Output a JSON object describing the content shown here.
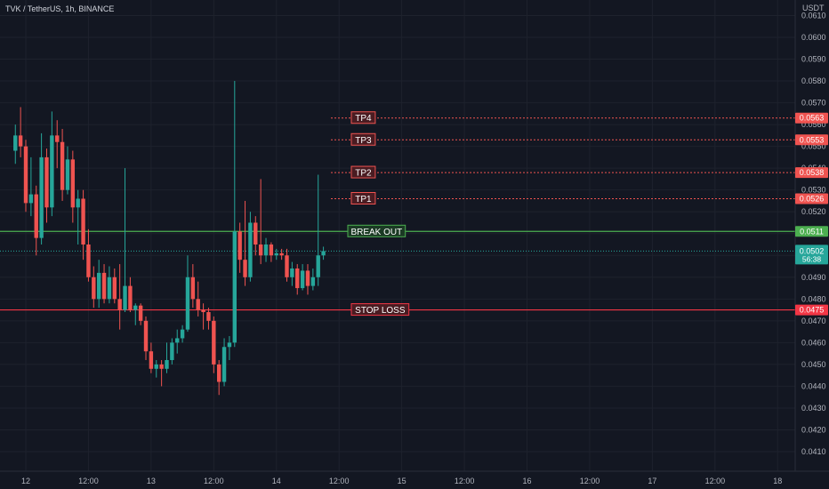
{
  "header": {
    "symbol_title": "TVK / TetherUS, 1h, BINANCE",
    "currency": "USDT"
  },
  "colors": {
    "background": "#131722",
    "grid": "#1e222d",
    "bull": "#26a69a",
    "bear": "#ef5350",
    "tp_line": "#ef5350",
    "breakout_line": "#4caf50",
    "stoploss_line": "#f23645",
    "last_price": "#26a69a"
  },
  "chart_data": {
    "type": "candlestick",
    "title": "TVK / TetherUS, 1h, BINANCE",
    "ylabel": "USDT",
    "y_ticks": [
      "0.0410",
      "0.0420",
      "0.0430",
      "0.0440",
      "0.0450",
      "0.0460",
      "0.0470",
      "0.0480",
      "0.0490",
      "0.0500",
      "0.0510",
      "0.0520",
      "0.0530",
      "0.0540",
      "0.0550",
      "0.0560",
      "0.0570",
      "0.0580",
      "0.0590",
      "0.0600",
      "0.0610"
    ],
    "ylim": [
      0.0406,
      0.0612
    ],
    "x_ticks": [
      {
        "label": "12",
        "t": 2
      },
      {
        "label": "12:00",
        "t": 14
      },
      {
        "label": "13",
        "t": 26
      },
      {
        "label": "12:00",
        "t": 38
      },
      {
        "label": "14",
        "t": 50
      },
      {
        "label": "12:00",
        "t": 62
      },
      {
        "label": "15",
        "t": 74
      },
      {
        "label": "12:00",
        "t": 86
      },
      {
        "label": "16",
        "t": 98
      },
      {
        "label": "12:00",
        "t": 110
      },
      {
        "label": "17",
        "t": 122
      },
      {
        "label": "12:00",
        "t": 134
      },
      {
        "label": "18",
        "t": 146
      }
    ],
    "candles": [
      [
        0.0548,
        0.0555,
        0.0542,
        0.056
      ],
      [
        0.0555,
        0.055,
        0.0545,
        0.0568
      ],
      [
        0.055,
        0.0524,
        0.052,
        0.0553
      ],
      [
        0.0524,
        0.0528,
        0.0518,
        0.0545
      ],
      [
        0.0528,
        0.0508,
        0.05,
        0.0532
      ],
      [
        0.0508,
        0.0545,
        0.0505,
        0.0556
      ],
      [
        0.0545,
        0.0522,
        0.0515,
        0.0549
      ],
      [
        0.0522,
        0.0555,
        0.0518,
        0.0566
      ],
      [
        0.0555,
        0.0552,
        0.054,
        0.0562
      ],
      [
        0.0552,
        0.053,
        0.0525,
        0.0558
      ],
      [
        0.053,
        0.0544,
        0.0528,
        0.055
      ],
      [
        0.0544,
        0.0522,
        0.0515,
        0.0548
      ],
      [
        0.0522,
        0.0526,
        0.0505,
        0.053
      ],
      [
        0.0526,
        0.0505,
        0.0498,
        0.053
      ],
      [
        0.0505,
        0.049,
        0.0488,
        0.0512
      ],
      [
        0.049,
        0.048,
        0.0476,
        0.0495
      ],
      [
        0.048,
        0.0492,
        0.0476,
        0.0498
      ],
      [
        0.0492,
        0.048,
        0.0478,
        0.0496
      ],
      [
        0.048,
        0.049,
        0.0478,
        0.0495
      ],
      [
        0.049,
        0.048,
        0.0478,
        0.0494
      ],
      [
        0.048,
        0.0475,
        0.0466,
        0.0496
      ],
      [
        0.0475,
        0.0486,
        0.0474,
        0.054
      ],
      [
        0.0486,
        0.0475,
        0.0474,
        0.049
      ],
      [
        0.0475,
        0.0477,
        0.0468,
        0.0478
      ],
      [
        0.0477,
        0.047,
        0.0468,
        0.0478
      ],
      [
        0.047,
        0.0456,
        0.0452,
        0.0472
      ],
      [
        0.0456,
        0.0448,
        0.0446,
        0.046
      ],
      [
        0.0448,
        0.045,
        0.0444,
        0.0452
      ],
      [
        0.045,
        0.0448,
        0.044,
        0.0452
      ],
      [
        0.0448,
        0.0452,
        0.0446,
        0.046
      ],
      [
        0.0452,
        0.046,
        0.045,
        0.0462
      ],
      [
        0.046,
        0.0462,
        0.0455,
        0.0466
      ],
      [
        0.0462,
        0.0466,
        0.046,
        0.0468
      ],
      [
        0.0466,
        0.049,
        0.0465,
        0.05
      ],
      [
        0.049,
        0.048,
        0.0476,
        0.0496
      ],
      [
        0.048,
        0.0475,
        0.0472,
        0.0488
      ],
      [
        0.0475,
        0.0474,
        0.0466,
        0.0478
      ],
      [
        0.0474,
        0.047,
        0.0466,
        0.0476
      ],
      [
        0.047,
        0.045,
        0.0446,
        0.0472
      ],
      [
        0.045,
        0.0442,
        0.0436,
        0.0452
      ],
      [
        0.0442,
        0.0458,
        0.044,
        0.0462
      ],
      [
        0.0458,
        0.046,
        0.0452,
        0.0463
      ],
      [
        0.046,
        0.0511,
        0.0458,
        0.058
      ],
      [
        0.0511,
        0.0498,
        0.0492,
        0.0515
      ],
      [
        0.0498,
        0.049,
        0.0486,
        0.0525
      ],
      [
        0.049,
        0.0515,
        0.0488,
        0.052
      ],
      [
        0.0515,
        0.0505,
        0.05,
        0.0518
      ],
      [
        0.0505,
        0.05,
        0.0496,
        0.0535
      ],
      [
        0.05,
        0.0505,
        0.0497,
        0.0508
      ],
      [
        0.0505,
        0.05,
        0.0497,
        0.0506
      ],
      [
        0.05,
        0.0501,
        0.0498,
        0.0503
      ],
      [
        0.0501,
        0.05,
        0.0498,
        0.0503
      ],
      [
        0.05,
        0.049,
        0.0488,
        0.0503
      ],
      [
        0.049,
        0.0494,
        0.0486,
        0.0497
      ],
      [
        0.0494,
        0.0485,
        0.0482,
        0.0496
      ],
      [
        0.0485,
        0.0493,
        0.0484,
        0.0496
      ],
      [
        0.0493,
        0.0486,
        0.0482,
        0.0496
      ],
      [
        0.0486,
        0.049,
        0.0484,
        0.0494
      ],
      [
        0.049,
        0.05,
        0.0486,
        0.0537
      ],
      [
        0.05,
        0.0502,
        0.0498,
        0.0504
      ]
    ],
    "levels": [
      {
        "label": "TP4",
        "price": 0.0563,
        "price_label": "0.0563",
        "style": "tp"
      },
      {
        "label": "TP3",
        "price": 0.0553,
        "price_label": "0.0553",
        "style": "tp"
      },
      {
        "label": "TP2",
        "price": 0.0538,
        "price_label": "0.0538",
        "style": "tp"
      },
      {
        "label": "TP1",
        "price": 0.0526,
        "price_label": "0.0526",
        "style": "tp"
      },
      {
        "label": "BREAK OUT",
        "price": 0.0511,
        "price_label": "0.0511",
        "style": "breakout"
      },
      {
        "label": "STOP LOSS",
        "price": 0.0475,
        "price_label": "0.0475",
        "style": "stoploss"
      }
    ],
    "last_price": {
      "price": 0.0502,
      "price_label": "0.0502",
      "countdown": "56:38"
    }
  }
}
